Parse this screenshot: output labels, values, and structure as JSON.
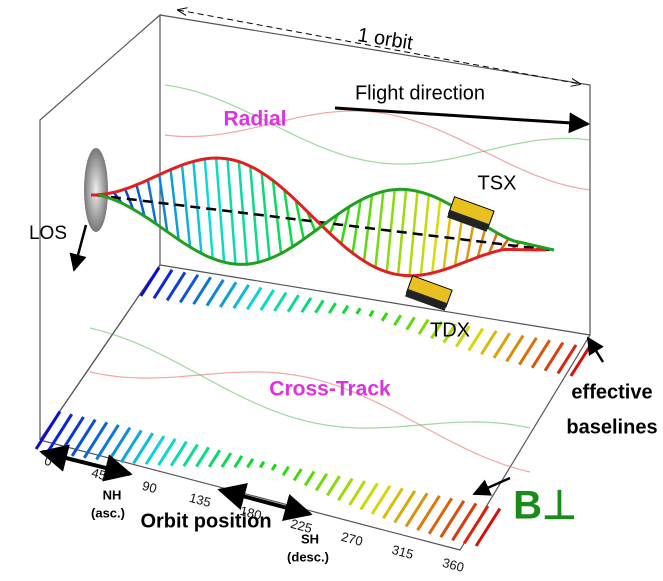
{
  "labels": {
    "orbit": "1 orbit",
    "flight": "Flight direction",
    "radial": "Radial",
    "tsx": "TSX",
    "los": "LOS",
    "tdx": "TDX",
    "cross_track": "Cross-Track",
    "effective": "effective",
    "baselines": "baselines",
    "nh": "NH",
    "asc": "(asc.)",
    "orbit_position": "Orbit position",
    "sh": "SH",
    "desc": "(desc.)",
    "b_perp": "B⊥"
  },
  "axis": {
    "ticks": [
      0,
      45,
      90,
      135,
      180,
      225,
      270,
      315,
      360
    ]
  }
}
